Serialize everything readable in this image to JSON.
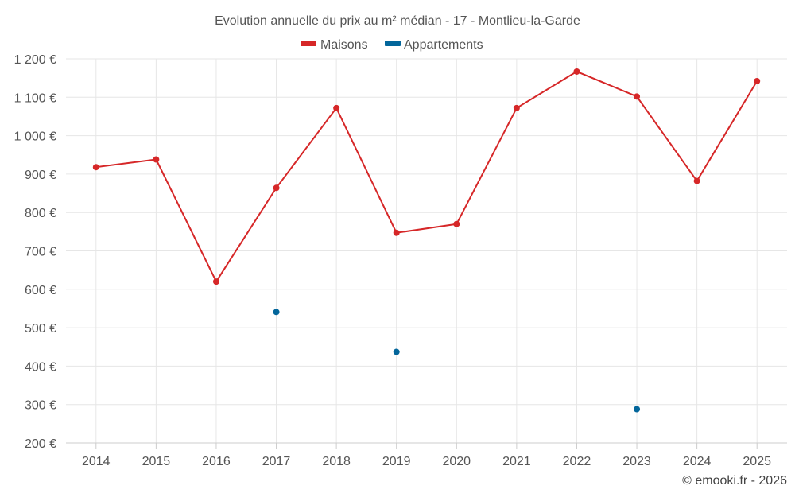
{
  "chart_data": {
    "type": "line",
    "title": "Evolution annuelle du prix au m² médian - 17 - Montlieu-la-Garde",
    "categories": [
      "2014",
      "2015",
      "2016",
      "2017",
      "2018",
      "2019",
      "2020",
      "2021",
      "2022",
      "2023",
      "2024",
      "2025"
    ],
    "ylim": [
      200,
      1200
    ],
    "yticks": [
      200,
      300,
      400,
      500,
      600,
      700,
      800,
      900,
      1000,
      1100,
      1200
    ],
    "ytick_labels": [
      "200 €",
      "300 €",
      "400 €",
      "500 €",
      "600 €",
      "700 €",
      "800 €",
      "900 €",
      "1 000 €",
      "1 100 €",
      "1 200 €"
    ],
    "grid": true,
    "legend_position": "top-center",
    "series": [
      {
        "name": "Maisons",
        "color": "#d62728",
        "style": "line",
        "values": [
          918,
          938,
          620,
          864,
          1072,
          747,
          770,
          1072,
          1167,
          1102,
          882,
          1142
        ]
      },
      {
        "name": "Appartements",
        "color": "#03669b",
        "style": "markers",
        "values": [
          null,
          null,
          null,
          541,
          null,
          437,
          null,
          null,
          null,
          288,
          null,
          null
        ]
      }
    ],
    "credit": "© emooki.fr - 2026"
  }
}
